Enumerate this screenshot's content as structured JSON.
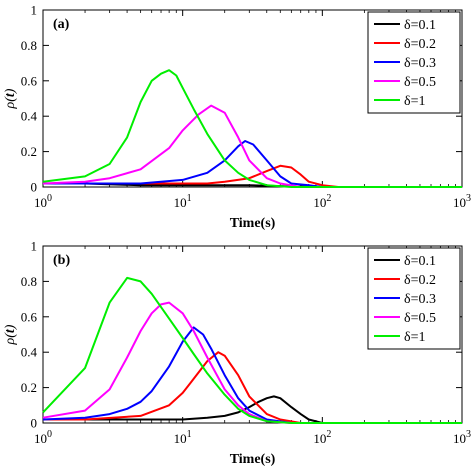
{
  "chart_data": [
    {
      "type": "line",
      "panel_label": "(a)",
      "xlabel": "Time(s)",
      "ylabel_main": "ρ(",
      "ylabel_var": "t",
      "ylabel_close": ")",
      "xscale": "log",
      "xlim": [
        1,
        1000
      ],
      "ylim": [
        0,
        1
      ],
      "xticks": [
        1,
        10,
        100,
        1000
      ],
      "yticks": [
        0,
        0.2,
        0.4,
        0.6,
        0.8,
        1
      ],
      "xtick_labels": [
        {
          "base": "10",
          "exp": "0"
        },
        {
          "base": "10",
          "exp": "1"
        },
        {
          "base": "10",
          "exp": "2"
        },
        {
          "base": "10",
          "exp": "3"
        }
      ],
      "ytick_labels": [
        "0",
        "0.2",
        "0.4",
        "0.6",
        "0.8",
        "1"
      ],
      "grid": false,
      "legend_position": "top-right",
      "series": [
        {
          "name": "δ=0.1",
          "color": "#000000",
          "x": [
            1,
            2,
            5,
            10,
            20,
            30,
            50,
            100,
            200,
            1000
          ],
          "y": [
            0.02,
            0.02,
            0.01,
            0.01,
            0.01,
            0.01,
            0.005,
            0,
            0,
            0
          ]
        },
        {
          "name": "δ=0.2",
          "color": "#ff0000",
          "x": [
            1,
            2,
            5,
            10,
            15,
            20,
            30,
            40,
            50,
            60,
            70,
            80,
            100,
            130,
            200,
            1000
          ],
          "y": [
            0.02,
            0.02,
            0.02,
            0.02,
            0.02,
            0.03,
            0.05,
            0.09,
            0.12,
            0.11,
            0.07,
            0.03,
            0.01,
            0,
            0,
            0
          ]
        },
        {
          "name": "δ=0.3",
          "color": "#0000ff",
          "x": [
            1,
            2,
            5,
            10,
            15,
            20,
            25,
            28,
            32,
            40,
            50,
            60,
            80,
            100,
            200,
            1000
          ],
          "y": [
            0.02,
            0.02,
            0.02,
            0.04,
            0.08,
            0.15,
            0.23,
            0.26,
            0.24,
            0.15,
            0.06,
            0.02,
            0.01,
            0,
            0,
            0
          ]
        },
        {
          "name": "δ=0.5",
          "color": "#ff00ff",
          "x": [
            1,
            2,
            3,
            5,
            8,
            10,
            13,
            16,
            20,
            25,
            30,
            40,
            50,
            70,
            100,
            1000
          ],
          "y": [
            0.02,
            0.03,
            0.05,
            0.1,
            0.22,
            0.32,
            0.41,
            0.46,
            0.42,
            0.28,
            0.15,
            0.05,
            0.02,
            0,
            0,
            0
          ]
        },
        {
          "name": "δ=1",
          "color": "#00ee00",
          "x": [
            1,
            2,
            3,
            4,
            5,
            6,
            7,
            8,
            9,
            10,
            12,
            15,
            20,
            25,
            30,
            40,
            60,
            100,
            1000
          ],
          "y": [
            0.03,
            0.06,
            0.13,
            0.28,
            0.48,
            0.6,
            0.64,
            0.66,
            0.63,
            0.56,
            0.44,
            0.3,
            0.15,
            0.08,
            0.04,
            0.01,
            0,
            0,
            0
          ]
        }
      ]
    },
    {
      "type": "line",
      "panel_label": "(b)",
      "xlabel": "Time(s)",
      "ylabel_main": "ρ(",
      "ylabel_var": "t",
      "ylabel_close": ")",
      "xscale": "log",
      "xlim": [
        1,
        1000
      ],
      "ylim": [
        0,
        1
      ],
      "xticks": [
        1,
        10,
        100,
        1000
      ],
      "yticks": [
        0,
        0.2,
        0.4,
        0.6,
        0.8,
        1
      ],
      "xtick_labels": [
        {
          "base": "10",
          "exp": "0"
        },
        {
          "base": "10",
          "exp": "1"
        },
        {
          "base": "10",
          "exp": "2"
        },
        {
          "base": "10",
          "exp": "3"
        }
      ],
      "ytick_labels": [
        "0",
        "0.2",
        "0.4",
        "0.6",
        "0.8",
        "1"
      ],
      "grid": false,
      "legend_position": "top-right",
      "series": [
        {
          "name": "δ=0.1",
          "color": "#000000",
          "x": [
            1,
            2,
            5,
            10,
            15,
            20,
            25,
            30,
            35,
            40,
            45,
            50,
            60,
            70,
            80,
            100,
            1000
          ],
          "y": [
            0.02,
            0.02,
            0.02,
            0.02,
            0.03,
            0.04,
            0.06,
            0.09,
            0.12,
            0.14,
            0.15,
            0.14,
            0.09,
            0.05,
            0.02,
            0,
            0
          ]
        },
        {
          "name": "δ=0.2",
          "color": "#ff0000",
          "x": [
            1,
            2,
            5,
            8,
            10,
            12,
            15,
            18,
            20,
            25,
            30,
            40,
            50,
            70,
            100,
            1000
          ],
          "y": [
            0.02,
            0.02,
            0.04,
            0.1,
            0.17,
            0.25,
            0.35,
            0.4,
            0.38,
            0.27,
            0.15,
            0.05,
            0.02,
            0,
            0,
            0
          ]
        },
        {
          "name": "δ=0.3",
          "color": "#0000ff",
          "x": [
            1,
            2,
            3,
            4,
            5,
            6,
            8,
            10,
            12,
            14,
            16,
            20,
            25,
            30,
            40,
            60,
            100,
            1000
          ],
          "y": [
            0.02,
            0.03,
            0.05,
            0.08,
            0.12,
            0.18,
            0.32,
            0.46,
            0.54,
            0.5,
            0.42,
            0.27,
            0.14,
            0.07,
            0.02,
            0,
            0,
            0
          ]
        },
        {
          "name": "δ=0.5",
          "color": "#ff00ff",
          "x": [
            1,
            2,
            3,
            4,
            5,
            6,
            7,
            8,
            10,
            12,
            15,
            20,
            25,
            30,
            40,
            60,
            100,
            1000
          ],
          "y": [
            0.03,
            0.07,
            0.19,
            0.37,
            0.52,
            0.62,
            0.67,
            0.68,
            0.62,
            0.52,
            0.37,
            0.19,
            0.1,
            0.05,
            0.01,
            0,
            0,
            0
          ]
        },
        {
          "name": "δ=1",
          "color": "#00ee00",
          "x": [
            1,
            2,
            3,
            4,
            5,
            6,
            8,
            10,
            12,
            15,
            20,
            25,
            30,
            40,
            60,
            100,
            1000
          ],
          "y": [
            0.06,
            0.31,
            0.68,
            0.82,
            0.8,
            0.73,
            0.59,
            0.48,
            0.39,
            0.28,
            0.16,
            0.08,
            0.04,
            0.01,
            0,
            0,
            0
          ]
        }
      ]
    }
  ]
}
